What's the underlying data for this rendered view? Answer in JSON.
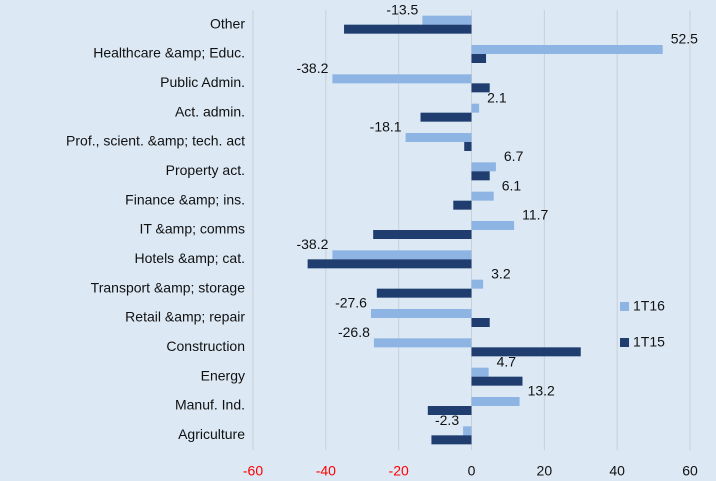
{
  "chart_data": {
    "type": "hbar",
    "categories": [
      "Other",
      "Healthcare &amp; Educ.",
      "Public Admin.",
      "Act. admin.",
      "Prof., scient. &amp; tech. act",
      "Property act.",
      "Finance &amp; ins.",
      "IT &amp; comms",
      "Hotels &amp; cat.",
      "Transport &amp; storage",
      "Retail &amp; repair",
      "Construction",
      "Energy",
      "Manuf. Ind.",
      "Agriculture"
    ],
    "series": [
      {
        "name": "1T16",
        "color": "#8db4e2",
        "data_labels": true,
        "values": [
          -13.5,
          52.5,
          -38.2,
          2.1,
          -18.1,
          6.7,
          6.1,
          11.7,
          -38.2,
          3.2,
          -27.6,
          -26.8,
          4.7,
          13.2,
          -2.3
        ]
      },
      {
        "name": "1T15",
        "color": "#1f3d6e",
        "data_labels": false,
        "values": [
          -35,
          4,
          5,
          -14,
          -2,
          5,
          -5,
          -27,
          -45,
          -26,
          5,
          30,
          14,
          -12,
          -11
        ]
      }
    ],
    "xlim": [
      -60,
      60
    ],
    "xticks": [
      -60,
      -40,
      -20,
      0,
      20,
      40,
      60
    ],
    "negative_tick_color": "#ff0000",
    "grid": true,
    "legend": "right"
  }
}
